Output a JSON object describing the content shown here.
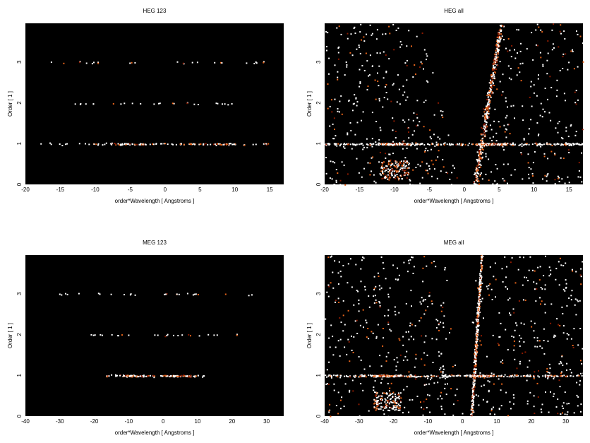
{
  "chart_data": [
    {
      "type": "heatmap",
      "title": "HEG 123",
      "xlabel": "order*Wavelength [ Angstroms ]",
      "ylabel": "Order [ 1 ]",
      "xlim": [
        -20,
        17
      ],
      "ylim": [
        0,
        3.95
      ],
      "xticks": [
        -20,
        -15,
        -10,
        -5,
        0,
        5,
        10,
        15
      ],
      "yticks": [
        0,
        1,
        2,
        3
      ],
      "colors": {
        "background": "#000000",
        "low": "#8b1a00",
        "mid": "#e8641a",
        "high": "#ffffff"
      },
      "bands": [
        {
          "y": 1.0,
          "x_range": [
            -18,
            15
          ],
          "density": "medium",
          "peaks": [
            [
              -8,
              -2
            ],
            [
              2,
              10
            ]
          ]
        },
        {
          "y": 2.0,
          "x_range": [
            -13,
            11
          ],
          "density": "low"
        },
        {
          "y": 3.0,
          "x_range": [
            -17,
            15
          ],
          "density": "low"
        }
      ]
    },
    {
      "type": "heatmap",
      "title": "HEG all",
      "xlabel": "order*Wavelength [ Angstroms ]",
      "ylabel": "Order [ 1 ]",
      "xlim": [
        -20,
        17
      ],
      "ylim": [
        0,
        3.95
      ],
      "xticks": [
        -20,
        -15,
        -10,
        -5,
        0,
        5,
        10,
        15
      ],
      "yticks": [
        0,
        1,
        2,
        3
      ],
      "colors": {
        "background": "#000000",
        "low": "#8b1a00",
        "mid": "#e8641a",
        "high": "#ffffff"
      },
      "bands": [
        {
          "y": 1.0,
          "x_range": [
            -20,
            17
          ],
          "density": "high",
          "peaks": [
            [
              -12,
              -8
            ],
            [
              2,
              6
            ]
          ]
        }
      ],
      "streak": {
        "x_at_y0": 1.5,
        "x_at_ytop": 5.2
      },
      "wedge_cutout": {
        "x_at_y0": [
          -0.5,
          1.0
        ],
        "x_at_ytop": [
          -6,
          4.5
        ]
      }
    },
    {
      "type": "heatmap",
      "title": "MEG 123",
      "xlabel": "order*Wavelength [ Angstroms ]",
      "ylabel": "Order [ 1 ]",
      "xlim": [
        -40,
        35
      ],
      "ylim": [
        0,
        3.95
      ],
      "xticks": [
        -40,
        -30,
        -20,
        -10,
        0,
        10,
        20,
        30
      ],
      "yticks": [
        0,
        1,
        2,
        3
      ],
      "colors": {
        "background": "#000000",
        "low": "#8b1a00",
        "mid": "#e8641a",
        "high": "#ffffff"
      },
      "bands": [
        {
          "y": 1.0,
          "x_range": [
            -17,
            12
          ],
          "density": "medium",
          "peaks": [
            [
              -12,
              -4
            ],
            [
              0,
              8
            ]
          ]
        },
        {
          "y": 2.0,
          "x_range": [
            -22,
            26
          ],
          "density": "low"
        },
        {
          "y": 3.0,
          "x_range": [
            -31,
            28
          ],
          "density": "low"
        }
      ]
    },
    {
      "type": "heatmap",
      "title": "MEG all",
      "xlabel": "order*Wavelength [ Angstroms ]",
      "ylabel": "Order [ 1 ]",
      "xlim": [
        -40,
        35
      ],
      "ylim": [
        0,
        3.95
      ],
      "xticks": [
        -40,
        -30,
        -20,
        -10,
        0,
        10,
        20,
        30
      ],
      "yticks": [
        0,
        1,
        2,
        3
      ],
      "colors": {
        "background": "#000000",
        "low": "#8b1a00",
        "mid": "#e8641a",
        "high": "#ffffff"
      },
      "bands": [
        {
          "y": 1.0,
          "x_range": [
            -40,
            35
          ],
          "density": "high",
          "peaks": [
            [
              -26,
              -18
            ],
            [
              2,
              9
            ]
          ]
        }
      ],
      "streak": {
        "x_at_y0": 2.5,
        "x_at_ytop": 5.5
      },
      "wedge_cutout": {
        "x_at_y0": [
          -1,
          1.5
        ],
        "x_at_ytop": [
          -5,
          3.5
        ]
      }
    }
  ]
}
